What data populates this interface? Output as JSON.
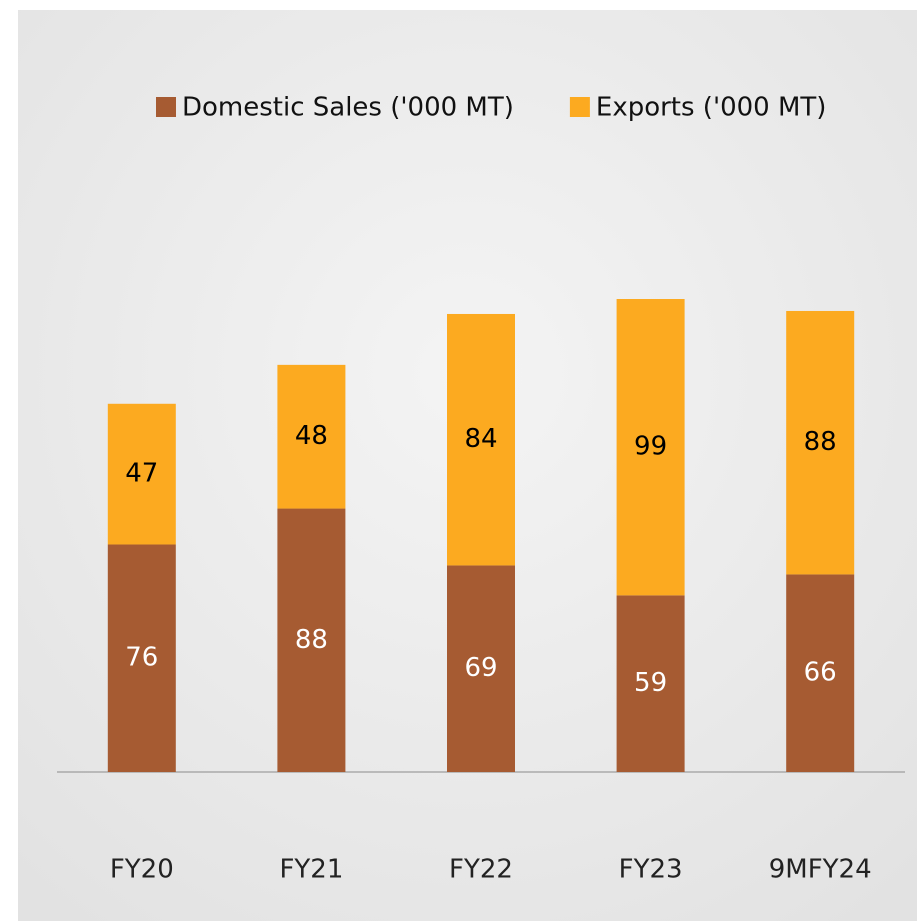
{
  "chart_data": {
    "type": "stacked-bar",
    "categories": [
      "FY20",
      "FY21",
      "FY22",
      "FY23",
      "9MFY24"
    ],
    "series": [
      {
        "name": "Domestic Sales ('000 MT)",
        "color": "#a65b32",
        "values": [
          76,
          88,
          69,
          59,
          66
        ]
      },
      {
        "name": "Exports ('000 MT)",
        "color": "#fcaa20",
        "values": [
          47,
          48,
          84,
          99,
          88
        ]
      }
    ]
  }
}
